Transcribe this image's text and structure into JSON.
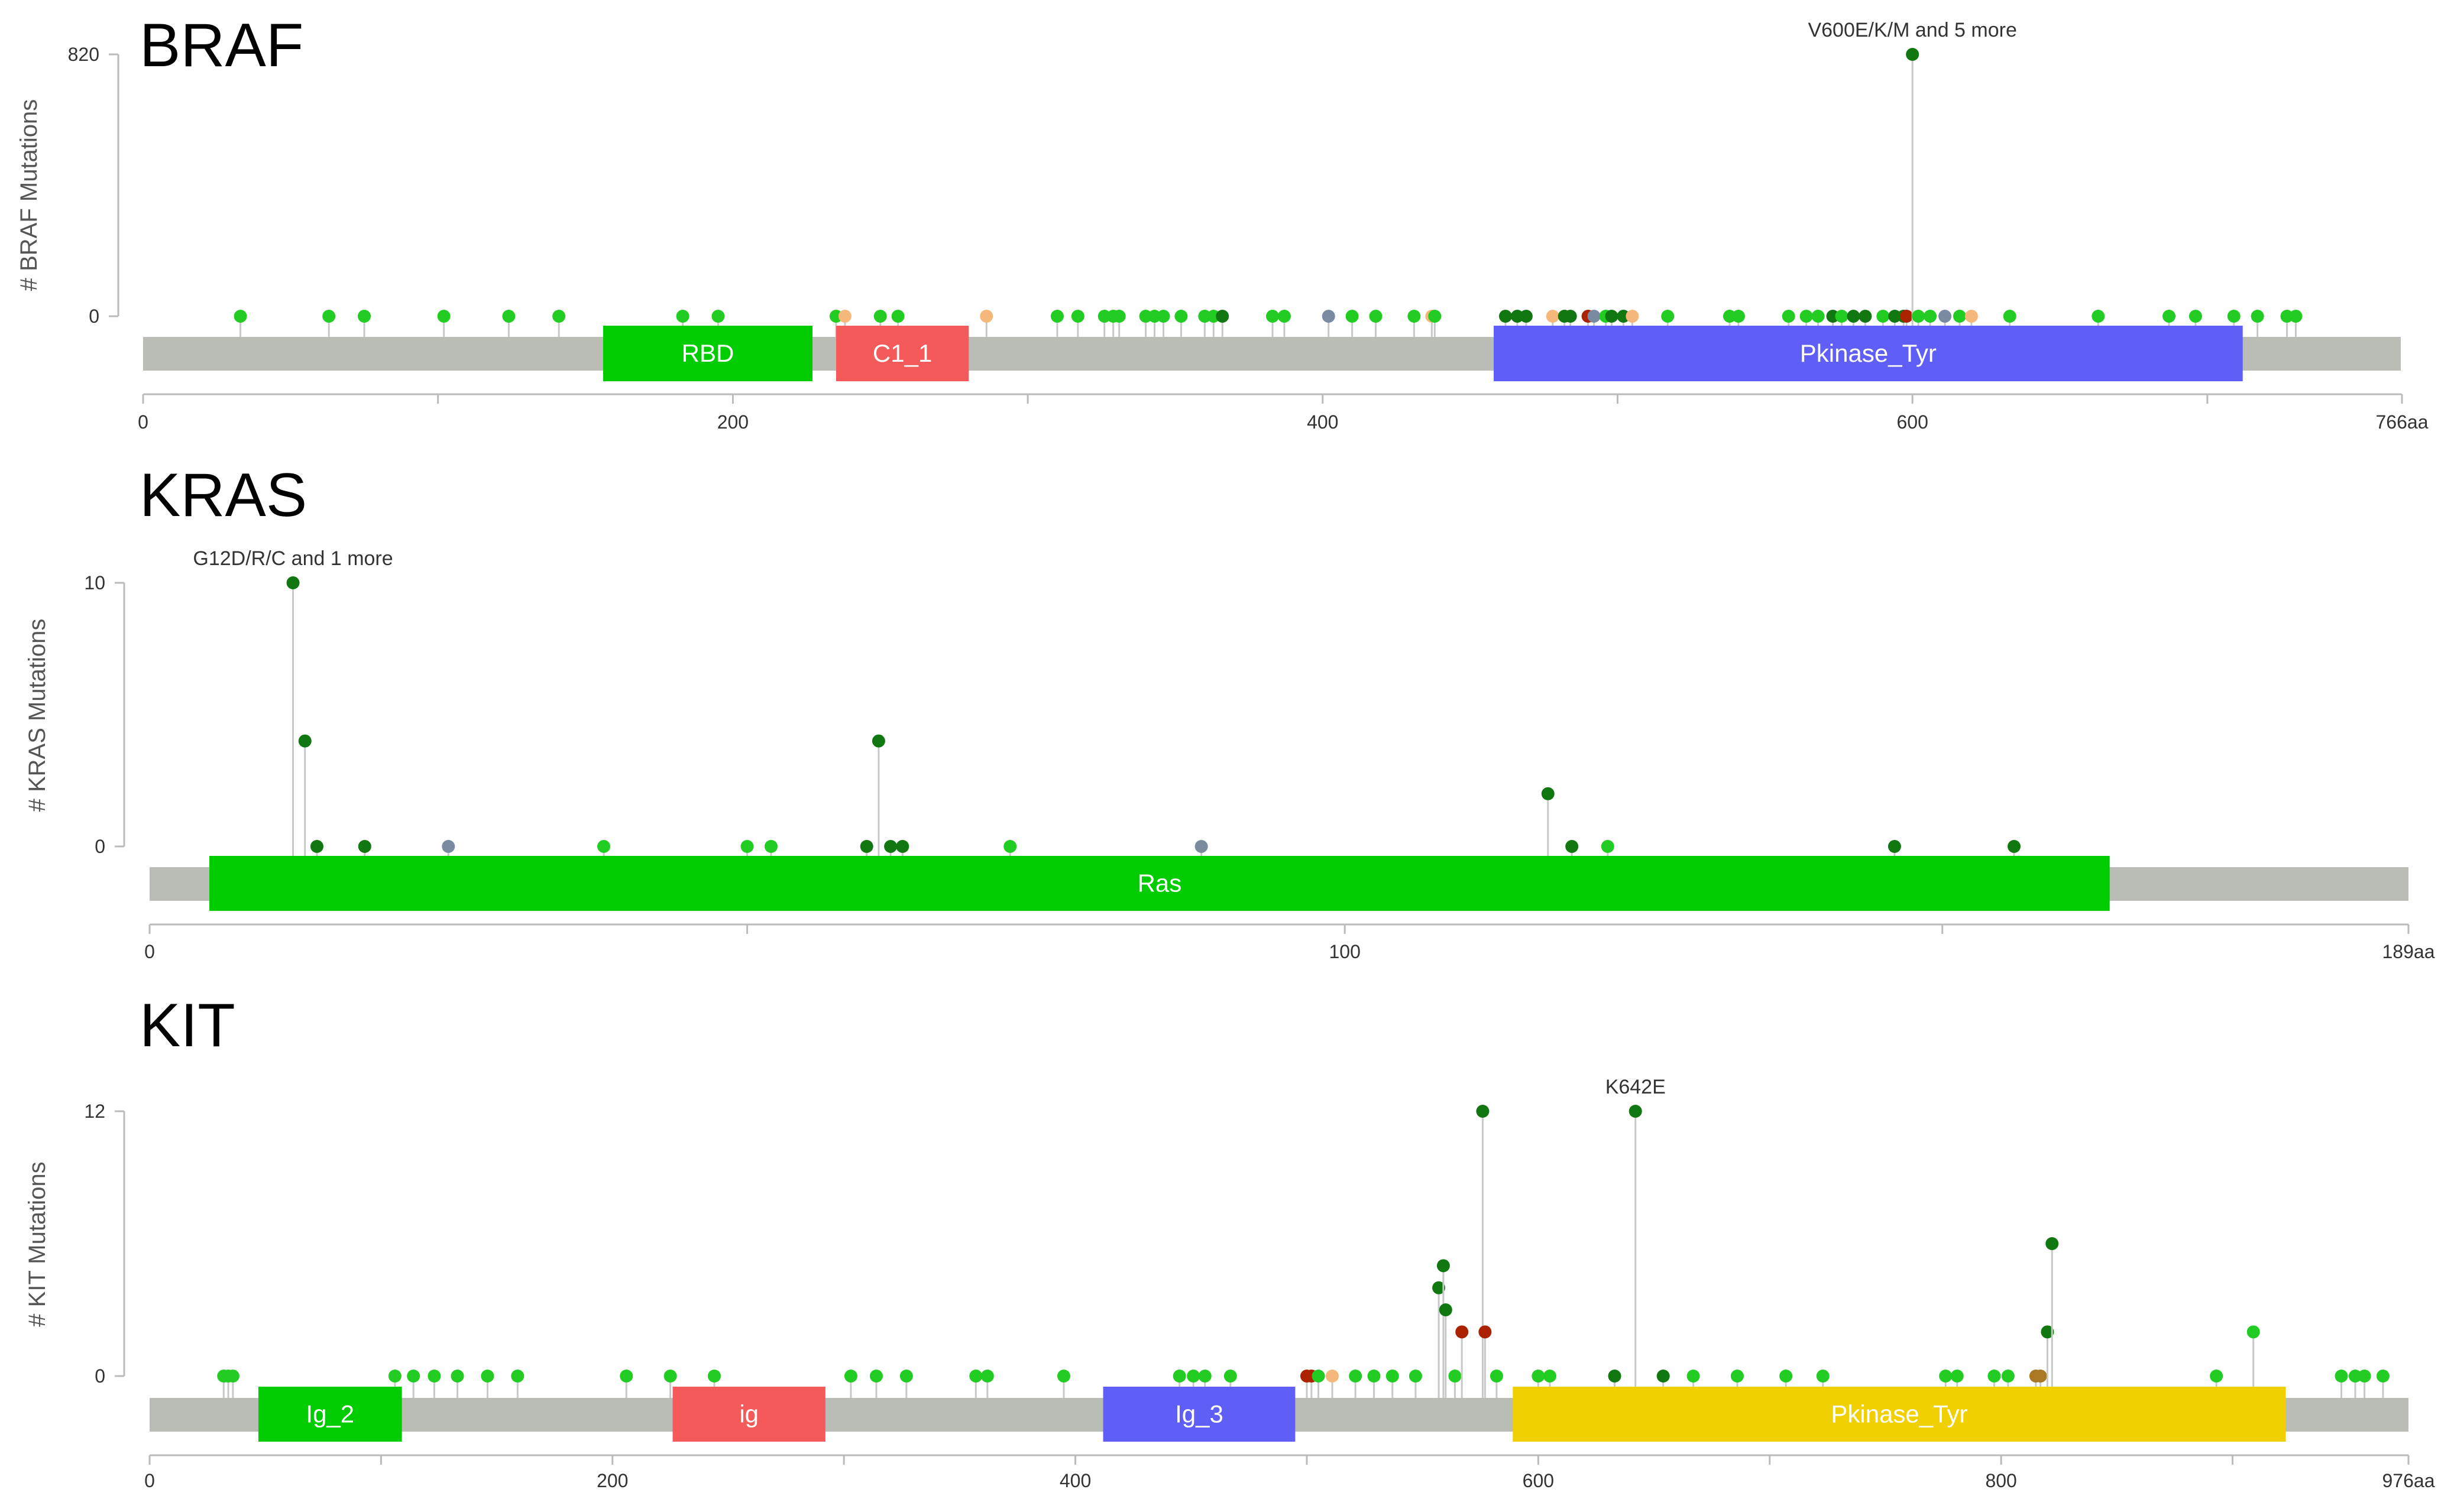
{
  "chart_data": [
    {
      "type": "lollipop",
      "gene": "BRAF",
      "ylabel": "# BRAF Mutations",
      "ylim": [
        0,
        820
      ],
      "y_ticks": [
        "0",
        "820"
      ],
      "x_ticks": [
        "0",
        "200",
        "400",
        "600",
        "766aa"
      ],
      "x_tick_values": [
        0,
        200,
        400,
        600,
        766
      ],
      "length": 766,
      "annotation": {
        "label": "V600E/K/M and 5 more",
        "x": 600,
        "y": 820
      },
      "domains": [
        {
          "name": "RBD",
          "start": 156,
          "end": 227,
          "color": "#00cc00"
        },
        {
          "name": "C1_1",
          "start": 235,
          "end": 280,
          "color": "#f55a5a"
        },
        {
          "name": "Pkinase_Tyr",
          "start": 458,
          "end": 712,
          "color": "#5f5ff7"
        }
      ],
      "mutations": [
        {
          "x": 33,
          "y": 1,
          "color": "#22cc22"
        },
        {
          "x": 63,
          "y": 1,
          "color": "#22cc22"
        },
        {
          "x": 75,
          "y": 1,
          "color": "#22cc22"
        },
        {
          "x": 102,
          "y": 1,
          "color": "#22cc22"
        },
        {
          "x": 124,
          "y": 1,
          "color": "#22cc22"
        },
        {
          "x": 141,
          "y": 1,
          "color": "#22cc22"
        },
        {
          "x": 183,
          "y": 1,
          "color": "#22cc22"
        },
        {
          "x": 195,
          "y": 1,
          "color": "#22cc22"
        },
        {
          "x": 235,
          "y": 1,
          "color": "#22cc22"
        },
        {
          "x": 238,
          "y": 1,
          "color": "#f5b87a"
        },
        {
          "x": 250,
          "y": 1,
          "color": "#22cc22"
        },
        {
          "x": 256,
          "y": 1,
          "color": "#22cc22"
        },
        {
          "x": 286,
          "y": 1,
          "color": "#f5b87a"
        },
        {
          "x": 310,
          "y": 1,
          "color": "#22cc22"
        },
        {
          "x": 317,
          "y": 1,
          "color": "#22cc22"
        },
        {
          "x": 326,
          "y": 1,
          "color": "#22cc22"
        },
        {
          "x": 329,
          "y": 1,
          "color": "#22cc22"
        },
        {
          "x": 331,
          "y": 1,
          "color": "#22cc22"
        },
        {
          "x": 340,
          "y": 1,
          "color": "#22cc22"
        },
        {
          "x": 343,
          "y": 1,
          "color": "#22cc22"
        },
        {
          "x": 346,
          "y": 1,
          "color": "#22cc22"
        },
        {
          "x": 352,
          "y": 1,
          "color": "#22cc22"
        },
        {
          "x": 360,
          "y": 1,
          "color": "#22cc22"
        },
        {
          "x": 363,
          "y": 1,
          "color": "#22cc22"
        },
        {
          "x": 366,
          "y": 1,
          "color": "#117711"
        },
        {
          "x": 383,
          "y": 1,
          "color": "#22cc22"
        },
        {
          "x": 387,
          "y": 1,
          "color": "#22cc22"
        },
        {
          "x": 402,
          "y": 1,
          "color": "#7a8aa0"
        },
        {
          "x": 410,
          "y": 1,
          "color": "#22cc22"
        },
        {
          "x": 418,
          "y": 1,
          "color": "#22cc22"
        },
        {
          "x": 431,
          "y": 1,
          "color": "#22cc22"
        },
        {
          "x": 437,
          "y": 1,
          "color": "#f5b87a"
        },
        {
          "x": 438,
          "y": 1,
          "color": "#22cc22"
        },
        {
          "x": 462,
          "y": 1,
          "color": "#117711"
        },
        {
          "x": 466,
          "y": 1,
          "color": "#117711"
        },
        {
          "x": 469,
          "y": 1,
          "color": "#117711"
        },
        {
          "x": 478,
          "y": 1,
          "color": "#f5b87a"
        },
        {
          "x": 482,
          "y": 1,
          "color": "#117711"
        },
        {
          "x": 484,
          "y": 1,
          "color": "#117711"
        },
        {
          "x": 490,
          "y": 1,
          "color": "#aa2200"
        },
        {
          "x": 492,
          "y": 1,
          "color": "#7a8aa0"
        },
        {
          "x": 496,
          "y": 1,
          "color": "#22cc22"
        },
        {
          "x": 498,
          "y": 1,
          "color": "#117711"
        },
        {
          "x": 502,
          "y": 1,
          "color": "#117711"
        },
        {
          "x": 505,
          "y": 1,
          "color": "#f5b87a"
        },
        {
          "x": 517,
          "y": 1,
          "color": "#22cc22"
        },
        {
          "x": 538,
          "y": 1,
          "color": "#22cc22"
        },
        {
          "x": 541,
          "y": 1,
          "color": "#22cc22"
        },
        {
          "x": 558,
          "y": 1,
          "color": "#22cc22"
        },
        {
          "x": 564,
          "y": 1,
          "color": "#22cc22"
        },
        {
          "x": 568,
          "y": 1,
          "color": "#22cc22"
        },
        {
          "x": 573,
          "y": 1,
          "color": "#117711"
        },
        {
          "x": 576,
          "y": 1,
          "color": "#22cc22"
        },
        {
          "x": 580,
          "y": 1,
          "color": "#117711"
        },
        {
          "x": 584,
          "y": 1,
          "color": "#117711"
        },
        {
          "x": 590,
          "y": 1,
          "color": "#22cc22"
        },
        {
          "x": 594,
          "y": 1,
          "color": "#117711"
        },
        {
          "x": 597,
          "y": 1,
          "color": "#117711"
        },
        {
          "x": 598,
          "y": 1,
          "color": "#aa2200"
        },
        {
          "x": 600,
          "y": 820,
          "color": "#117711"
        },
        {
          "x": 602,
          "y": 1,
          "color": "#22cc22"
        },
        {
          "x": 606,
          "y": 1,
          "color": "#22cc22"
        },
        {
          "x": 611,
          "y": 1,
          "color": "#7a8aa0"
        },
        {
          "x": 616,
          "y": 1,
          "color": "#22cc22"
        },
        {
          "x": 620,
          "y": 1,
          "color": "#f5b87a"
        },
        {
          "x": 633,
          "y": 1,
          "color": "#22cc22"
        },
        {
          "x": 663,
          "y": 1,
          "color": "#22cc22"
        },
        {
          "x": 687,
          "y": 1,
          "color": "#22cc22"
        },
        {
          "x": 696,
          "y": 1,
          "color": "#22cc22"
        },
        {
          "x": 709,
          "y": 1,
          "color": "#22cc22"
        },
        {
          "x": 717,
          "y": 1,
          "color": "#22cc22"
        },
        {
          "x": 727,
          "y": 1,
          "color": "#22cc22"
        },
        {
          "x": 730,
          "y": 1,
          "color": "#22cc22"
        }
      ]
    },
    {
      "type": "lollipop",
      "gene": "KRAS",
      "ylabel": "# KRAS Mutations",
      "ylim": [
        0,
        10
      ],
      "y_ticks": [
        "0",
        "10"
      ],
      "x_ticks": [
        "0",
        "100",
        "189aa"
      ],
      "x_tick_values": [
        0,
        100,
        189
      ],
      "length": 189,
      "annotation": {
        "label": "G12D/R/C and 1 more",
        "x": 12,
        "y": 10
      },
      "domains": [
        {
          "name": "Ras",
          "start": 5,
          "end": 164,
          "color": "#00cc00"
        }
      ],
      "mutations": [
        {
          "x": 12,
          "y": 10,
          "color": "#117711"
        },
        {
          "x": 13,
          "y": 4,
          "color": "#117711"
        },
        {
          "x": 14,
          "y": 1,
          "color": "#117711"
        },
        {
          "x": 18,
          "y": 1,
          "color": "#117711"
        },
        {
          "x": 25,
          "y": 1,
          "color": "#7a8aa0"
        },
        {
          "x": 38,
          "y": 1,
          "color": "#22cc22"
        },
        {
          "x": 50,
          "y": 1,
          "color": "#22cc22"
        },
        {
          "x": 52,
          "y": 1,
          "color": "#22cc22"
        },
        {
          "x": 60,
          "y": 1,
          "color": "#117711"
        },
        {
          "x": 61,
          "y": 4,
          "color": "#117711"
        },
        {
          "x": 62,
          "y": 1,
          "color": "#117711"
        },
        {
          "x": 63,
          "y": 1,
          "color": "#117711"
        },
        {
          "x": 72,
          "y": 1,
          "color": "#22cc22"
        },
        {
          "x": 88,
          "y": 1,
          "color": "#7a8aa0"
        },
        {
          "x": 117,
          "y": 2,
          "color": "#117711"
        },
        {
          "x": 119,
          "y": 1,
          "color": "#117711"
        },
        {
          "x": 122,
          "y": 1,
          "color": "#22cc22"
        },
        {
          "x": 146,
          "y": 1,
          "color": "#117711"
        },
        {
          "x": 156,
          "y": 1,
          "color": "#117711"
        }
      ]
    },
    {
      "type": "lollipop",
      "gene": "KIT",
      "ylabel": "# KIT Mutations",
      "ylim": [
        0,
        12
      ],
      "y_ticks": [
        "0",
        "12"
      ],
      "x_ticks": [
        "0",
        "200",
        "400",
        "600",
        "800",
        "976aa"
      ],
      "x_tick_values": [
        0,
        200,
        400,
        600,
        800,
        976
      ],
      "length": 976,
      "annotation": {
        "label": "K642E",
        "x": 642,
        "y": 12
      },
      "domains": [
        {
          "name": "Ig_2",
          "start": 47,
          "end": 109,
          "color": "#00cc00"
        },
        {
          "name": "ig",
          "start": 226,
          "end": 292,
          "color": "#f55a5a"
        },
        {
          "name": "Ig_3",
          "start": 412,
          "end": 495,
          "color": "#5f5ff7"
        },
        {
          "name": "Pkinase_Tyr",
          "start": 589,
          "end": 923,
          "color": "#f0d000"
        }
      ],
      "mutations": [
        {
          "x": 32,
          "y": 1,
          "color": "#22cc22"
        },
        {
          "x": 34,
          "y": 1,
          "color": "#22cc22"
        },
        {
          "x": 36,
          "y": 1,
          "color": "#22cc22"
        },
        {
          "x": 106,
          "y": 1,
          "color": "#22cc22"
        },
        {
          "x": 114,
          "y": 1,
          "color": "#22cc22"
        },
        {
          "x": 123,
          "y": 1,
          "color": "#22cc22"
        },
        {
          "x": 133,
          "y": 1,
          "color": "#22cc22"
        },
        {
          "x": 146,
          "y": 1,
          "color": "#22cc22"
        },
        {
          "x": 159,
          "y": 1,
          "color": "#22cc22"
        },
        {
          "x": 206,
          "y": 1,
          "color": "#22cc22"
        },
        {
          "x": 225,
          "y": 1,
          "color": "#22cc22"
        },
        {
          "x": 244,
          "y": 1,
          "color": "#22cc22"
        },
        {
          "x": 303,
          "y": 1,
          "color": "#22cc22"
        },
        {
          "x": 314,
          "y": 1,
          "color": "#22cc22"
        },
        {
          "x": 327,
          "y": 1,
          "color": "#22cc22"
        },
        {
          "x": 357,
          "y": 1,
          "color": "#22cc22"
        },
        {
          "x": 362,
          "y": 1,
          "color": "#22cc22"
        },
        {
          "x": 395,
          "y": 1,
          "color": "#22cc22"
        },
        {
          "x": 445,
          "y": 1,
          "color": "#22cc22"
        },
        {
          "x": 451,
          "y": 1,
          "color": "#22cc22"
        },
        {
          "x": 456,
          "y": 1,
          "color": "#22cc22"
        },
        {
          "x": 467,
          "y": 1,
          "color": "#22cc22"
        },
        {
          "x": 500,
          "y": 1,
          "color": "#aa2200"
        },
        {
          "x": 502,
          "y": 1,
          "color": "#aa2200"
        },
        {
          "x": 505,
          "y": 1,
          "color": "#22cc22"
        },
        {
          "x": 511,
          "y": 1,
          "color": "#f5b87a"
        },
        {
          "x": 521,
          "y": 1,
          "color": "#22cc22"
        },
        {
          "x": 529,
          "y": 1,
          "color": "#22cc22"
        },
        {
          "x": 537,
          "y": 1,
          "color": "#22cc22"
        },
        {
          "x": 547,
          "y": 1,
          "color": "#22cc22"
        },
        {
          "x": 557,
          "y": 4,
          "color": "#117711"
        },
        {
          "x": 559,
          "y": 5,
          "color": "#117711"
        },
        {
          "x": 560,
          "y": 3,
          "color": "#117711"
        },
        {
          "x": 564,
          "y": 1,
          "color": "#22cc22"
        },
        {
          "x": 567,
          "y": 2,
          "color": "#aa2200"
        },
        {
          "x": 576,
          "y": 12,
          "color": "#117711"
        },
        {
          "x": 577,
          "y": 2,
          "color": "#aa2200"
        },
        {
          "x": 582,
          "y": 1,
          "color": "#22cc22"
        },
        {
          "x": 600,
          "y": 1,
          "color": "#22cc22"
        },
        {
          "x": 605,
          "y": 1,
          "color": "#22cc22"
        },
        {
          "x": 633,
          "y": 1,
          "color": "#117711"
        },
        {
          "x": 642,
          "y": 12,
          "color": "#117711"
        },
        {
          "x": 654,
          "y": 1,
          "color": "#117711"
        },
        {
          "x": 667,
          "y": 1,
          "color": "#22cc22"
        },
        {
          "x": 686,
          "y": 1,
          "color": "#22cc22"
        },
        {
          "x": 707,
          "y": 1,
          "color": "#22cc22"
        },
        {
          "x": 723,
          "y": 1,
          "color": "#22cc22"
        },
        {
          "x": 776,
          "y": 1,
          "color": "#22cc22"
        },
        {
          "x": 781,
          "y": 1,
          "color": "#22cc22"
        },
        {
          "x": 797,
          "y": 1,
          "color": "#22cc22"
        },
        {
          "x": 803,
          "y": 1,
          "color": "#22cc22"
        },
        {
          "x": 815,
          "y": 1,
          "color": "#aa7722"
        },
        {
          "x": 817,
          "y": 1,
          "color": "#aa7722"
        },
        {
          "x": 820,
          "y": 2,
          "color": "#117711"
        },
        {
          "x": 822,
          "y": 6,
          "color": "#117711"
        },
        {
          "x": 893,
          "y": 1,
          "color": "#22cc22"
        },
        {
          "x": 909,
          "y": 2,
          "color": "#22cc22"
        },
        {
          "x": 947,
          "y": 1,
          "color": "#22cc22"
        },
        {
          "x": 953,
          "y": 1,
          "color": "#22cc22"
        },
        {
          "x": 957,
          "y": 1,
          "color": "#22cc22"
        },
        {
          "x": 965,
          "y": 1,
          "color": "#22cc22"
        }
      ]
    }
  ]
}
